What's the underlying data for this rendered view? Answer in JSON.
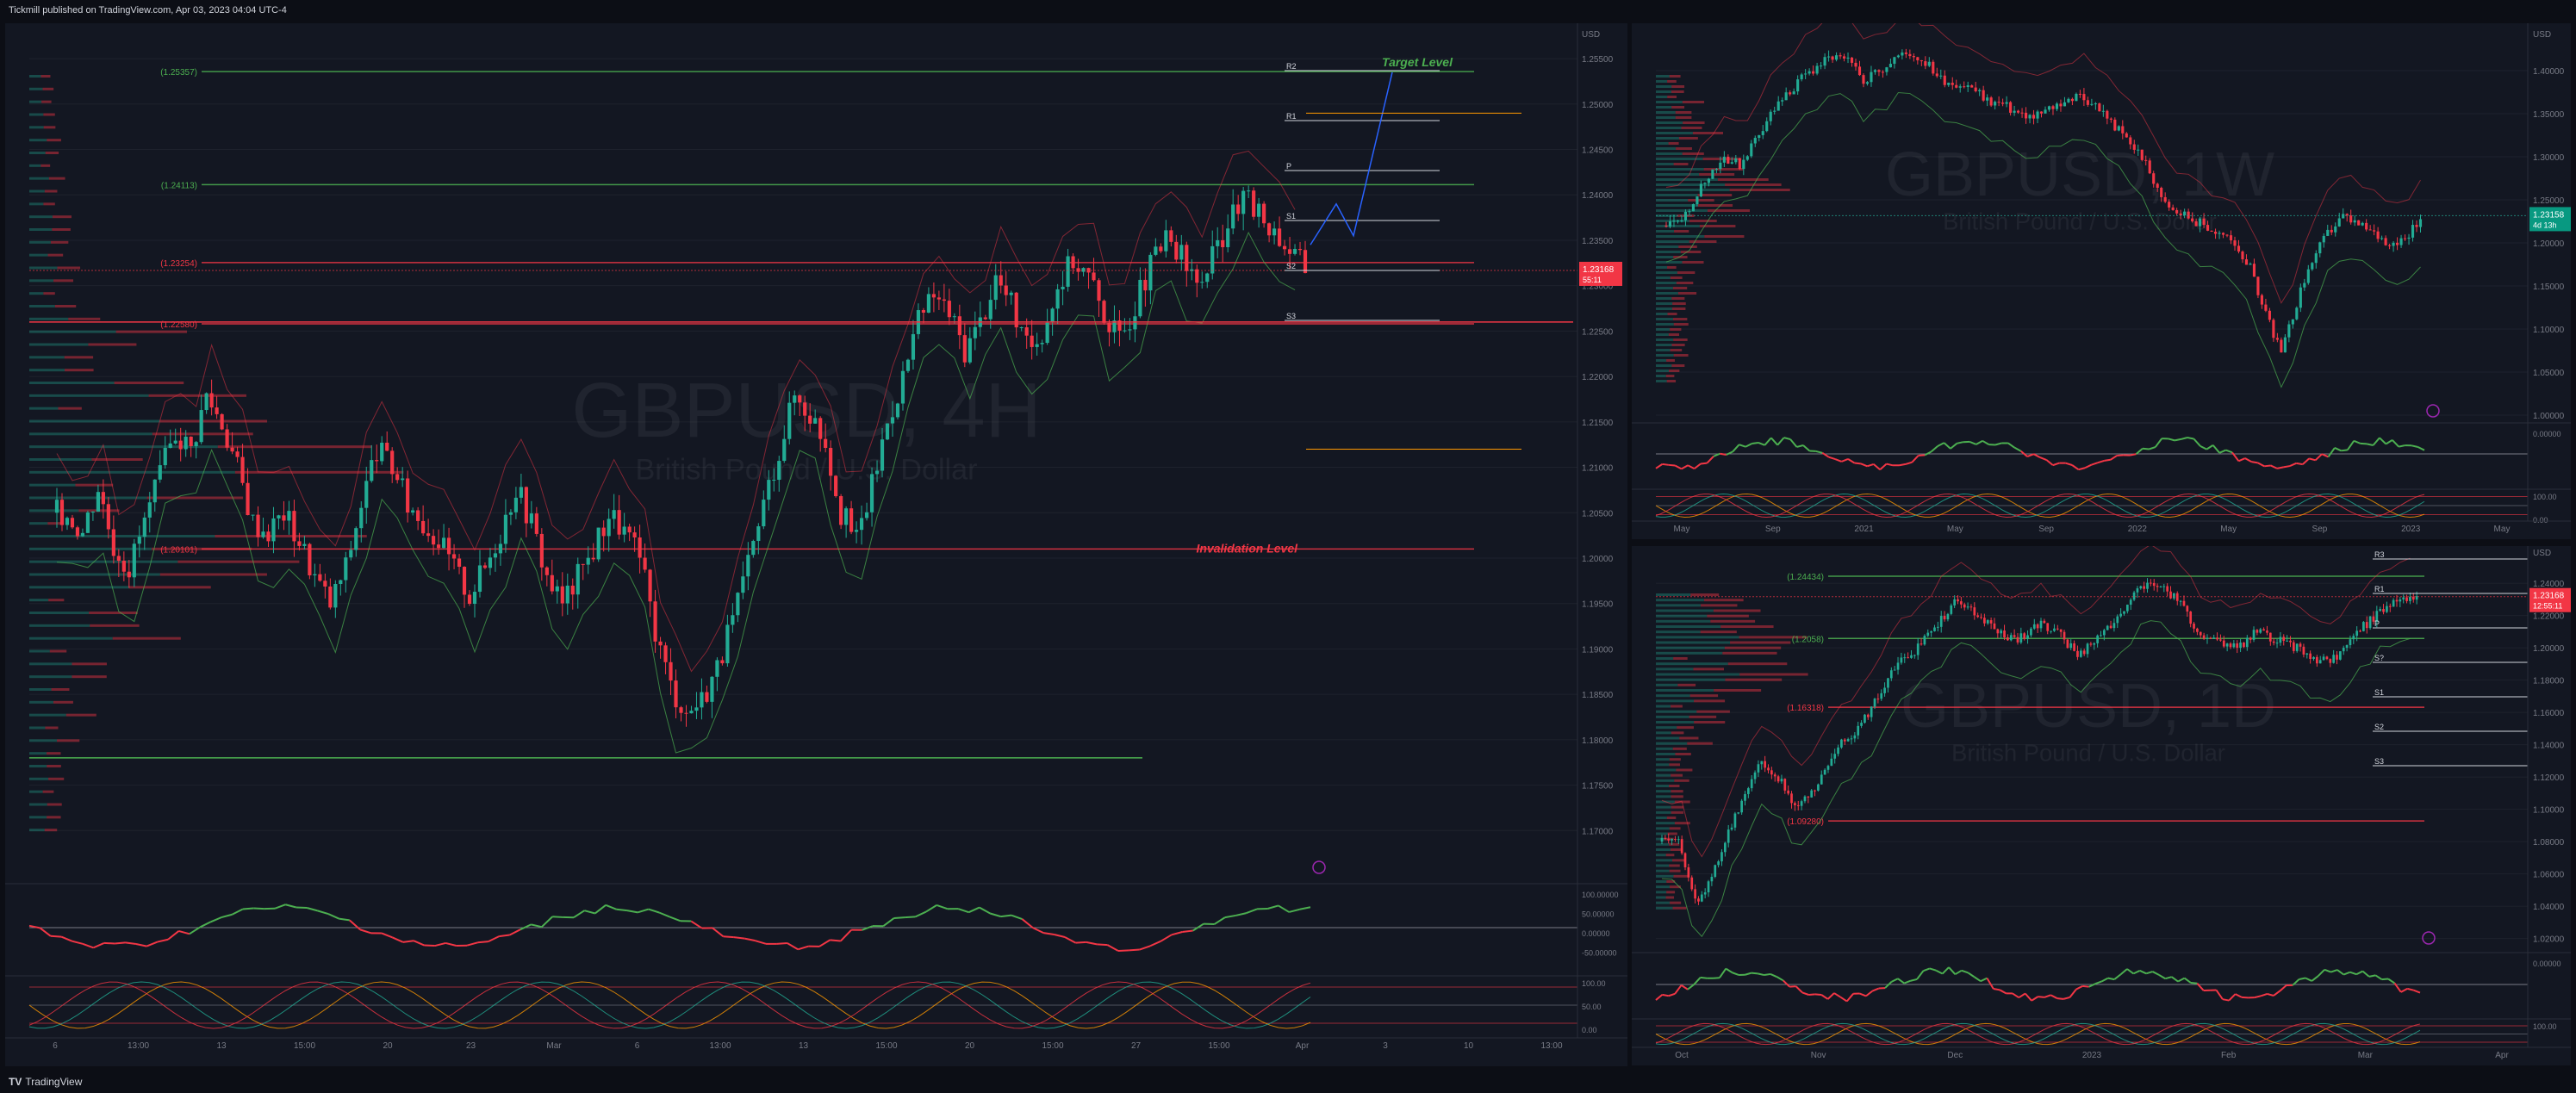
{
  "header": {
    "publisher_line": "Tickmill published on TradingView.com, Apr 03, 2023 04:04 UTC-4"
  },
  "footer": {
    "brand": "TradingView",
    "brand_mark": "TV"
  },
  "colors": {
    "up": "#22ab94",
    "down": "#f23645",
    "bg": "#131722",
    "grid": "#1e222d",
    "axis_text": "#787b86",
    "green_line": "#4caf50",
    "red_line": "#f23645",
    "orange": "#ff9800",
    "blue": "#2962ff"
  },
  "chart_data": [
    {
      "type": "candlestick",
      "panel": "main",
      "timeframe": "4H",
      "watermark_symbol": "GBPUSD, 4H",
      "watermark_desc": "British Pound / U.S. Dollar",
      "currency": "USD",
      "price_axis": [
        "1.25500",
        "1.25000",
        "1.24500",
        "1.24000",
        "1.23500",
        "1.23000",
        "1.22500",
        "1.22000",
        "1.21500",
        "1.21000",
        "1.20500",
        "1.20000",
        "1.19500",
        "1.19000",
        "1.18500",
        "1.18000",
        "1.17500",
        "1.17000"
      ],
      "ylim": [
        1.165,
        1.257
      ],
      "time_axis": [
        "6",
        "13:00",
        "13",
        "15:00",
        "20",
        "23",
        "Mar",
        "6",
        "13:00",
        "13",
        "15:00",
        "20",
        "15:00",
        "27",
        "15:00",
        "Apr",
        "3",
        "10",
        "13:00"
      ],
      "last_price": "1.23168",
      "countdown": "55:11",
      "levels": [
        {
          "label": "(1.25357)",
          "value": 1.25357
        },
        {
          "label": "(1.24113)",
          "value": 1.24113
        },
        {
          "label": "(1.23254)",
          "value": 1.23254
        },
        {
          "label": "(1.22580)",
          "value": 1.2258
        },
        {
          "label": "(1.20101)",
          "value": 1.20101
        }
      ],
      "pivots": [
        "R2",
        "R1",
        "P",
        "S1",
        "S2",
        "S3"
      ],
      "annotations": {
        "target": "Target Level",
        "invalidation": "Invalidation Level"
      },
      "price_path": [
        1.205,
        1.203,
        1.208,
        1.2015,
        1.199,
        1.204,
        1.209,
        1.214,
        1.212,
        1.218,
        1.215,
        1.21,
        1.204,
        1.203,
        1.205,
        1.202,
        1.198,
        1.195,
        1.199,
        1.206,
        1.212,
        1.21,
        1.206,
        1.204,
        1.202,
        1.199,
        1.196,
        1.199,
        1.203,
        1.208,
        1.204,
        1.198,
        1.195,
        1.198,
        1.201,
        1.205,
        1.203,
        1.2,
        1.192,
        1.186,
        1.183,
        1.1845,
        1.188,
        1.193,
        1.199,
        1.206,
        1.212,
        1.218,
        1.216,
        1.213,
        1.205,
        1.202,
        1.208,
        1.215,
        1.22,
        1.226,
        1.229,
        1.227,
        1.223,
        1.226,
        1.231,
        1.228,
        1.223,
        1.225,
        1.23,
        1.233,
        1.231,
        1.227,
        1.224,
        1.228,
        1.232,
        1.235,
        1.233,
        1.23,
        1.233,
        1.237,
        1.2395,
        1.238,
        1.236,
        1.234,
        1.232
      ],
      "rsi_axis": [
        "100.00000",
        "50.00000",
        "0.00000",
        "-50.00000"
      ],
      "stoch_axis": [
        "100.00",
        "50.00",
        "0.00"
      ]
    },
    {
      "type": "candlestick",
      "panel": "weekly",
      "timeframe": "1W",
      "watermark_symbol": "GBPUSD, 1W",
      "watermark_desc": "British Pound / U.S. Dollar",
      "currency": "USD",
      "price_axis": [
        "1.40000",
        "1.35000",
        "1.30000",
        "1.25000",
        "1.20000",
        "1.15000",
        "1.10000",
        "1.05000",
        "1.00000"
      ],
      "ylim": [
        0.995,
        1.435
      ],
      "time_axis": [
        "May",
        "Sep",
        "2021",
        "May",
        "Sep",
        "2022",
        "May",
        "Sep",
        "2023",
        "May"
      ],
      "last_price": "1.23158",
      "countdown": "4d 13h",
      "price_path": [
        1.22,
        1.25,
        1.28,
        1.3,
        1.29,
        1.32,
        1.35,
        1.37,
        1.39,
        1.405,
        1.415,
        1.41,
        1.39,
        1.4,
        1.415,
        1.42,
        1.41,
        1.39,
        1.385,
        1.38,
        1.365,
        1.36,
        1.35,
        1.345,
        1.355,
        1.365,
        1.37,
        1.36,
        1.34,
        1.32,
        1.3,
        1.26,
        1.24,
        1.23,
        1.22,
        1.21,
        1.2,
        1.17,
        1.12,
        1.07,
        1.13,
        1.18,
        1.21,
        1.23,
        1.22,
        1.21,
        1.2,
        1.205,
        1.23
      ],
      "rsi_axis": [
        "0.00000"
      ],
      "stoch_axis": [
        "100.00",
        "0.00"
      ]
    },
    {
      "type": "candlestick",
      "panel": "daily",
      "timeframe": "1D",
      "watermark_symbol": "GBPUSD, 1D",
      "watermark_desc": "British Pound / U.S. Dollar",
      "currency": "USD",
      "price_axis": [
        "1.24000",
        "1.22000",
        "1.20000",
        "1.18000",
        "1.16000",
        "1.14000",
        "1.12000",
        "1.10000",
        "1.08000",
        "1.06000",
        "1.04000",
        "1.02000"
      ],
      "ylim": [
        1.015,
        1.255
      ],
      "time_axis": [
        "Oct",
        "Nov",
        "Dec",
        "2023",
        "Feb",
        "Mar",
        "Apr"
      ],
      "last_price": "1.23168",
      "countdown": "12:55:11",
      "levels": [
        {
          "label": "(1.24434)",
          "value": 1.24434
        },
        {
          "label": "(1.2058)",
          "value": 1.2058
        },
        {
          "label": "(1.16318)",
          "value": 1.16318
        },
        {
          "label": "(1.09280)",
          "value": 1.0928
        }
      ],
      "pivots": [
        "R3",
        "R1",
        "P",
        "S?",
        "S1",
        "S2",
        "S3"
      ],
      "price_path": [
        1.08,
        1.04,
        1.07,
        1.1,
        1.13,
        1.12,
        1.1,
        1.115,
        1.14,
        1.15,
        1.17,
        1.19,
        1.2,
        1.215,
        1.23,
        1.22,
        1.21,
        1.205,
        1.215,
        1.21,
        1.195,
        1.205,
        1.22,
        1.235,
        1.24,
        1.23,
        1.21,
        1.205,
        1.2,
        1.21,
        1.205,
        1.2,
        1.19,
        1.195,
        1.21,
        1.22,
        1.23,
        1.232
      ],
      "rsi_axis": [
        "0.00000"
      ],
      "stoch_axis": [
        "100.00"
      ]
    }
  ]
}
